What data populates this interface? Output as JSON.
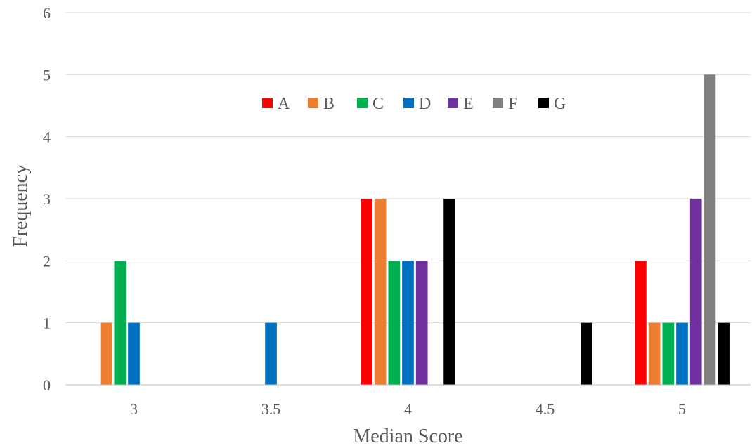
{
  "chart_data": {
    "type": "bar",
    "title": "",
    "xlabel": "Median Score",
    "ylabel": "Frequency",
    "categories": [
      "3",
      "3.5",
      "4",
      "4.5",
      "5"
    ],
    "ylim": [
      0,
      6
    ],
    "yticks": [
      "0",
      "1",
      "2",
      "3",
      "4",
      "5",
      "6"
    ],
    "grid": true,
    "legend_position": "top-center",
    "series": [
      {
        "name": "A",
        "color": "#ff0000",
        "values": [
          0,
          0,
          3,
          0,
          2
        ]
      },
      {
        "name": "B",
        "color": "#ed7d31",
        "values": [
          1,
          0,
          3,
          0,
          1
        ]
      },
      {
        "name": "C",
        "color": "#00b050",
        "values": [
          2,
          0,
          2,
          0,
          1
        ]
      },
      {
        "name": "D",
        "color": "#0070c0",
        "values": [
          1,
          1,
          2,
          0,
          1
        ]
      },
      {
        "name": "E",
        "color": "#7030a0",
        "values": [
          0,
          0,
          2,
          0,
          3
        ]
      },
      {
        "name": "F",
        "color": "#808080",
        "values": [
          0,
          0,
          0,
          0,
          5
        ]
      },
      {
        "name": "G",
        "color": "#000000",
        "values": [
          0,
          0,
          3,
          1,
          1
        ]
      }
    ]
  }
}
